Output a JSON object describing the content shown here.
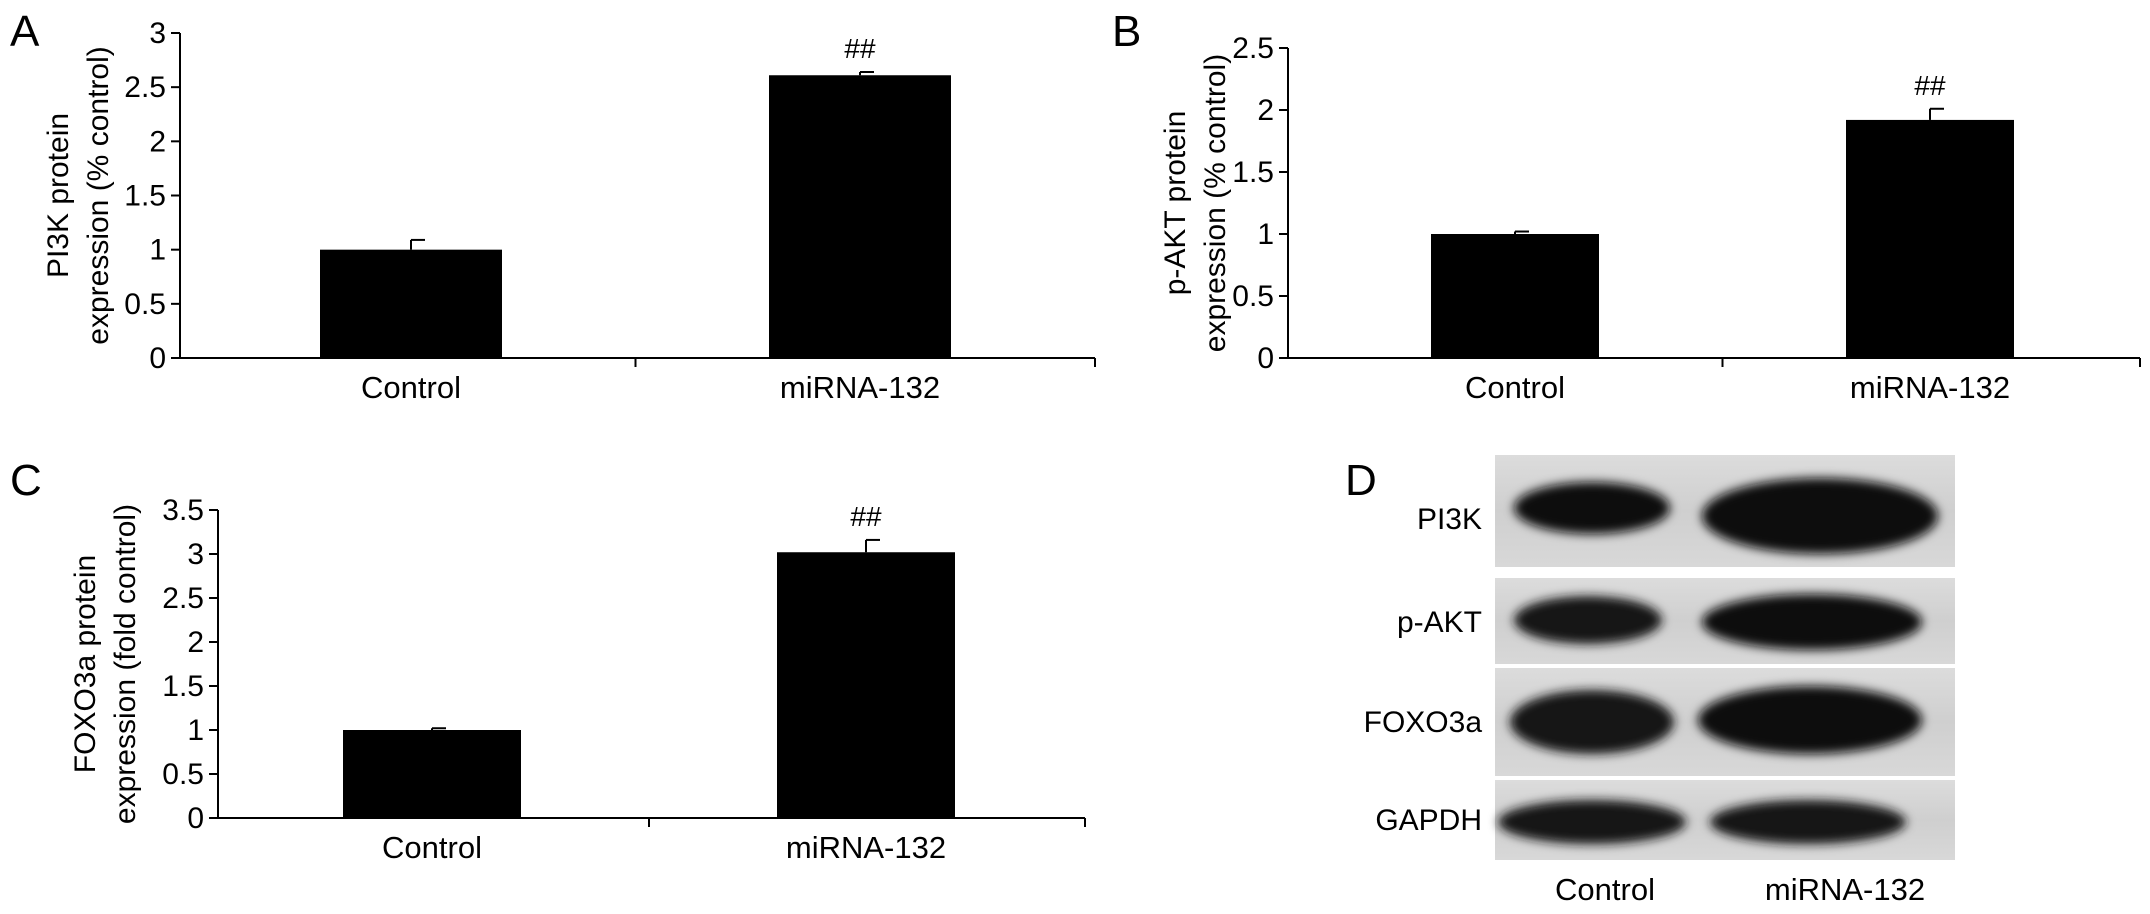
{
  "chart_data": [
    {
      "panel": "A",
      "type": "bar",
      "categories": [
        "Control",
        "miRNA-132"
      ],
      "values": [
        1.0,
        2.61
      ],
      "errors": [
        0.09,
        0.03
      ],
      "annotations": [
        "",
        "##"
      ],
      "ylabel": [
        "PI3K protein",
        "expression (% control)"
      ],
      "ylim": [
        0,
        3
      ],
      "yticks": [
        0,
        0.5,
        1,
        1.5,
        2,
        2.5,
        3
      ],
      "ytick_labels": [
        "0",
        "0.5",
        "1",
        "1.5",
        "2",
        "2.5",
        "3"
      ]
    },
    {
      "panel": "B",
      "type": "bar",
      "categories": [
        "Control",
        "miRNA-132"
      ],
      "values": [
        1.0,
        1.92
      ],
      "errors": [
        0.02,
        0.09
      ],
      "annotations": [
        "",
        "##"
      ],
      "ylabel": [
        "p-AKT protein",
        "expression (% control)"
      ],
      "ylim": [
        0,
        2.5
      ],
      "yticks": [
        0,
        0.5,
        1,
        1.5,
        2,
        2.5
      ],
      "ytick_labels": [
        "0",
        "0.5",
        "1",
        "1.5",
        "2",
        "2.5"
      ]
    },
    {
      "panel": "C",
      "type": "bar",
      "categories": [
        "Control",
        "miRNA-132"
      ],
      "values": [
        1.0,
        3.02
      ],
      "errors": [
        0.02,
        0.14
      ],
      "annotations": [
        "",
        "##"
      ],
      "ylabel": [
        "FOXO3a protein",
        "expression (fold control)"
      ],
      "ylim": [
        0,
        3.5
      ],
      "yticks": [
        0,
        0.5,
        1,
        1.5,
        2,
        2.5,
        3,
        3.5
      ],
      "ytick_labels": [
        "0",
        "0.5",
        "1",
        "1.5",
        "2",
        "2.5",
        "3",
        "3.5"
      ]
    }
  ],
  "western_blot": {
    "panel": "D",
    "rows": [
      "PI3K",
      "p-AKT",
      "FOXO3a",
      "GAPDH"
    ],
    "lanes": [
      "Control",
      "miRNA-132"
    ]
  },
  "colors": {
    "bar": "#000000",
    "axis": "#000000",
    "blot_bg": "#d4d4d4",
    "band": "#111111"
  }
}
